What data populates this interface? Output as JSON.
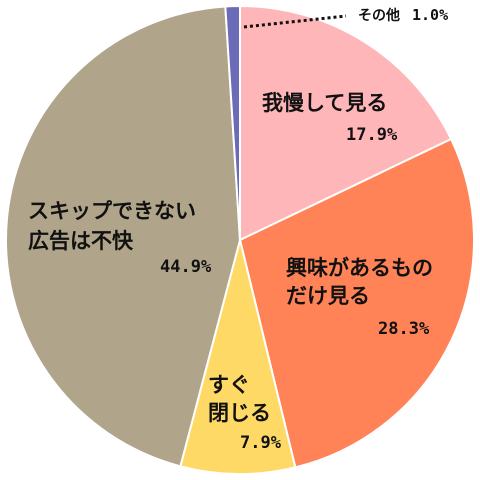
{
  "chart_data": {
    "type": "pie",
    "title": "",
    "start_angle_deg": 0,
    "direction": "clockwise",
    "slices": [
      {
        "name": "我慢して見る",
        "value": 17.9,
        "value_label": "17.9%",
        "color": "#FFB6B9"
      },
      {
        "name": "興味があるものだけ見る",
        "value": 28.3,
        "value_label": "28.3%",
        "color": "#FF8357"
      },
      {
        "name": "すぐ閉じる",
        "value": 7.9,
        "value_label": "7.9%",
        "color": "#FFD966"
      },
      {
        "name": "スキップできない広告は不快",
        "value": 44.9,
        "value_label": "44.9%",
        "color": "#B0A58A"
      },
      {
        "name": "その他",
        "value": 1.0,
        "value_label": "1.0%",
        "color": "#6B6BB8"
      }
    ],
    "labels": {
      "s0": {
        "lines": [
          "我慢して見る"
        ],
        "value": "17.9%"
      },
      "s1": {
        "lines": [
          "興味があるもの",
          "だけ見る"
        ],
        "value": "28.3%"
      },
      "s2": {
        "lines": [
          "すぐ",
          "閉じる"
        ],
        "value": "7.9%"
      },
      "s3": {
        "lines": [
          "スキップできない",
          "広告は不快"
        ],
        "value": "44.9%"
      },
      "s4": {
        "lines": [
          "その他"
        ],
        "value": "1.0%"
      }
    }
  }
}
